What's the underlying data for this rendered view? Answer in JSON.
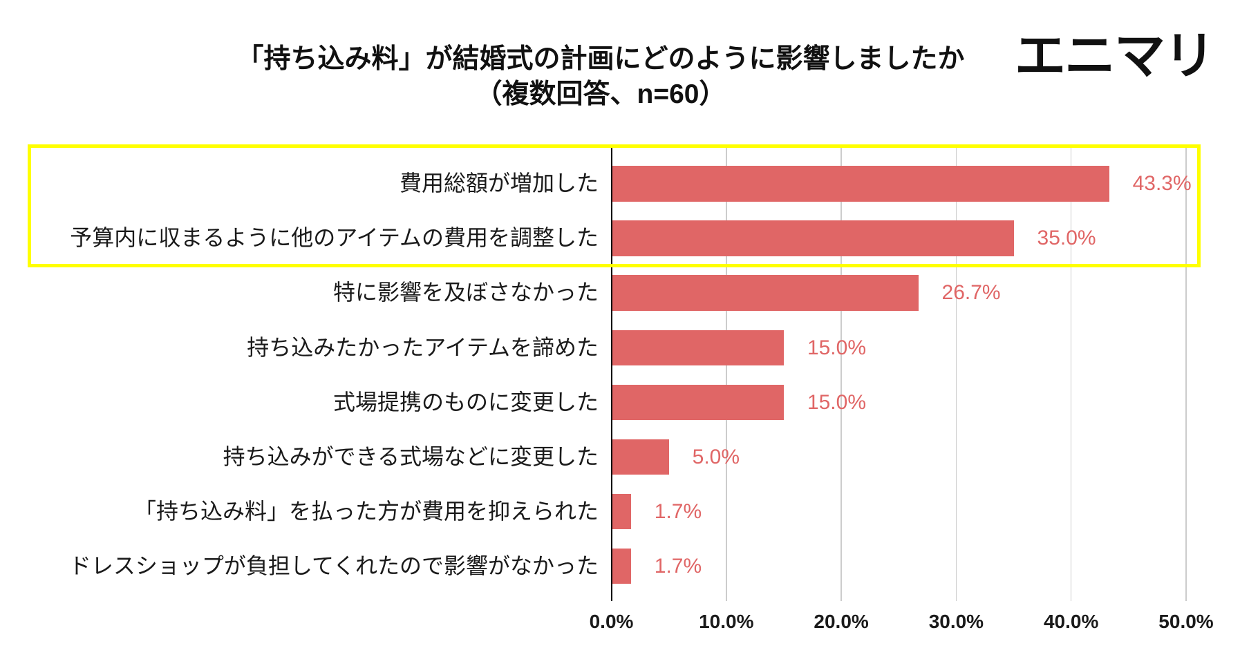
{
  "brand": {
    "logo_text": "エニマリ"
  },
  "colors": {
    "bar": "#E06666",
    "value_label": "#E06666",
    "highlight_border": "#FFFF00",
    "gridline": "#CCCCCC",
    "axis": "#000000"
  },
  "chart_data": {
    "type": "bar",
    "orientation": "horizontal",
    "title": "「持ち込み料」が結婚式の計画にどのように影響しましたか",
    "subtitle": "（複数回答、n=60）",
    "xlabel": "",
    "ylabel": "",
    "categories": [
      "費用総額が増加した",
      "予算内に収まるように他のアイテムの費用を調整した",
      "特に影響を及ぼさなかった",
      "持ち込みたかったアイテムを諦めた",
      "式場提携のものに変更した",
      "持ち込みができる式場などに変更した",
      "「持ち込み料」を払った方が費用を抑えられた",
      "ドレスショップが負担してくれたので影響がなかった"
    ],
    "values": [
      43.3,
      35.0,
      26.7,
      15.0,
      15.0,
      5.0,
      1.7,
      1.7
    ],
    "value_labels": [
      "43.3%",
      "35.0%",
      "26.7%",
      "15.0%",
      "15.0%",
      "5.0%",
      "1.7%",
      "1.7%"
    ],
    "xlim": [
      0,
      50
    ],
    "xticks": [
      0,
      10,
      20,
      30,
      40,
      50
    ],
    "xtick_labels": [
      "0.0%",
      "10.0%",
      "20.0%",
      "30.0%",
      "40.0%",
      "50.0%"
    ],
    "grid": true,
    "highlighted_indices": [
      0,
      1
    ]
  }
}
